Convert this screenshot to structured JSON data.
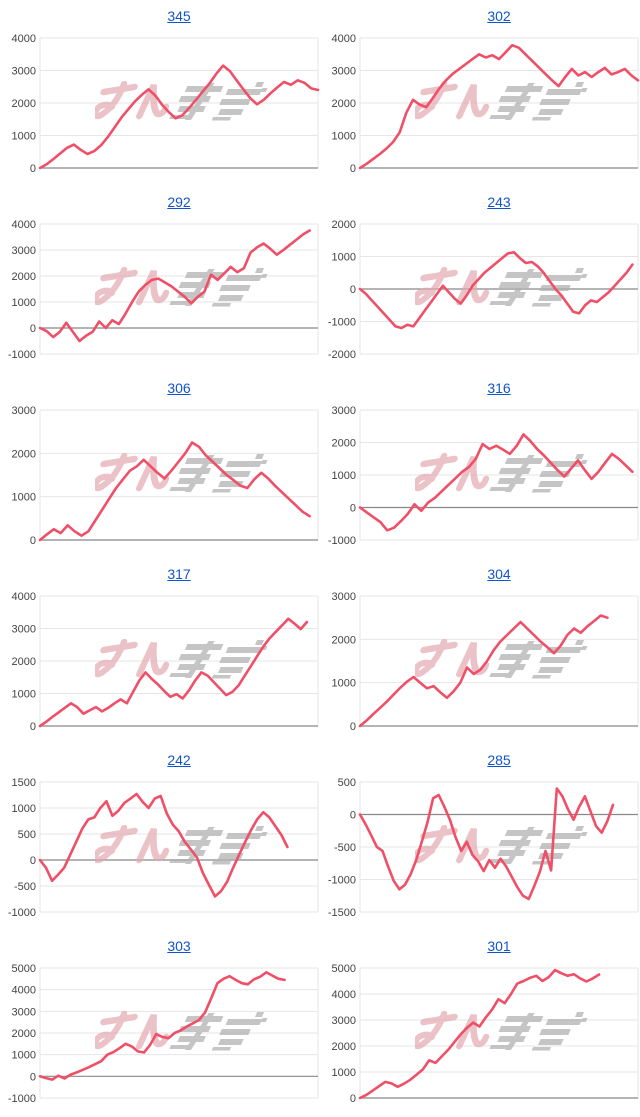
{
  "page": {
    "background": "#ffffff",
    "description": "Grid of twelve cumulative line charts, each titled by a blue numeric link"
  },
  "watermark": {
    "text": "みんかぶ",
    "pink_color": "#e2a6ad",
    "gray_color": "#b0b0b0"
  },
  "style": {
    "line_color": "#ef5068",
    "link_color": "#1155cc",
    "grid_color": "#e6e6e6",
    "baseline_color": "#888888",
    "axis_text_color": "#444444"
  },
  "chart_data": [
    {
      "type": "line",
      "title": "345",
      "xlabel": "",
      "ylabel": "",
      "ylim": [
        0,
        4000
      ],
      "y_step": 1000,
      "grid": true,
      "legend": "none",
      "end_fraction": 1.0,
      "values": [
        0,
        120,
        280,
        450,
        620,
        720,
        560,
        430,
        520,
        700,
        950,
        1250,
        1550,
        1800,
        2050,
        2250,
        2420,
        2230,
        1950,
        1720,
        1530,
        1620,
        1850,
        2100,
        2350,
        2600,
        2900,
        3150,
        2980,
        2700,
        2420,
        2150,
        1960,
        2100,
        2300,
        2480,
        2650,
        2560,
        2700,
        2620,
        2450,
        2400
      ]
    },
    {
      "type": "line",
      "title": "302",
      "xlabel": "",
      "ylabel": "",
      "ylim": [
        0,
        4000
      ],
      "y_step": 1000,
      "grid": true,
      "legend": "none",
      "end_fraction": 1.0,
      "values": [
        0,
        130,
        280,
        430,
        600,
        800,
        1100,
        1700,
        2100,
        1950,
        1870,
        2150,
        2450,
        2700,
        2900,
        3050,
        3200,
        3350,
        3500,
        3400,
        3470,
        3350,
        3560,
        3780,
        3700,
        3500,
        3300,
        3100,
        2900,
        2700,
        2520,
        2800,
        3050,
        2850,
        2950,
        2800,
        2950,
        3080,
        2880,
        2950,
        3050,
        2850,
        2700
      ]
    },
    {
      "type": "line",
      "title": "292",
      "xlabel": "",
      "ylabel": "",
      "ylim": [
        -1000,
        4000
      ],
      "y_step": 1000,
      "grid": true,
      "legend": "none",
      "end_fraction": 0.97,
      "values": [
        0,
        -120,
        -350,
        -150,
        200,
        -150,
        -500,
        -300,
        -150,
        250,
        0,
        300,
        150,
        550,
        1000,
        1400,
        1650,
        1850,
        1900,
        1750,
        1600,
        1400,
        1200,
        950,
        1200,
        1400,
        2050,
        1850,
        2100,
        2350,
        2150,
        2300,
        2900,
        3100,
        3250,
        3050,
        2820,
        3000,
        3200,
        3400,
        3600,
        3750
      ]
    },
    {
      "type": "line",
      "title": "243",
      "xlabel": "",
      "ylabel": "",
      "ylim": [
        -2000,
        2000
      ],
      "y_step": 1000,
      "grid": true,
      "legend": "none",
      "end_fraction": 0.98,
      "values": [
        0,
        -150,
        -350,
        -550,
        -750,
        -950,
        -1150,
        -1200,
        -1100,
        -1150,
        -900,
        -650,
        -400,
        -150,
        100,
        -100,
        -300,
        -450,
        -200,
        100,
        300,
        500,
        650,
        800,
        950,
        1100,
        1130,
        950,
        800,
        830,
        700,
        500,
        250,
        0,
        -200,
        -450,
        -700,
        -750,
        -500,
        -350,
        -400,
        -250,
        -100,
        100,
        300,
        500,
        750
      ]
    },
    {
      "type": "line",
      "title": "306",
      "xlabel": "",
      "ylabel": "",
      "ylim": [
        0,
        3000
      ],
      "y_step": 1000,
      "grid": true,
      "legend": "none",
      "end_fraction": 0.97,
      "values": [
        0,
        130,
        250,
        160,
        340,
        200,
        100,
        200,
        450,
        700,
        950,
        1200,
        1400,
        1600,
        1700,
        1850,
        1700,
        1550,
        1420,
        1600,
        1800,
        2000,
        2250,
        2150,
        1950,
        1800,
        1650,
        1500,
        1380,
        1250,
        1200,
        1400,
        1550,
        1420,
        1250,
        1100,
        950,
        800,
        650,
        550
      ]
    },
    {
      "type": "line",
      "title": "316",
      "xlabel": "",
      "ylabel": "",
      "ylim": [
        -1000,
        3000
      ],
      "y_step": 1000,
      "grid": true,
      "legend": "none",
      "end_fraction": 0.98,
      "values": [
        0,
        -150,
        -300,
        -450,
        -700,
        -620,
        -420,
        -200,
        100,
        -100,
        150,
        300,
        500,
        700,
        900,
        1100,
        1250,
        1500,
        1950,
        1800,
        1900,
        1780,
        1650,
        1900,
        2250,
        2050,
        1800,
        1600,
        1380,
        1150,
        950,
        1200,
        1450,
        1150,
        880,
        1100,
        1380,
        1650,
        1500,
        1300,
        1100
      ]
    },
    {
      "type": "line",
      "title": "317",
      "xlabel": "",
      "ylabel": "",
      "ylim": [
        0,
        4000
      ],
      "y_step": 1000,
      "grid": true,
      "legend": "none",
      "end_fraction": 0.96,
      "values": [
        0,
        130,
        280,
        420,
        560,
        700,
        580,
        380,
        480,
        580,
        450,
        560,
        700,
        820,
        700,
        1050,
        1400,
        1650,
        1450,
        1280,
        1080,
        900,
        980,
        850,
        1100,
        1400,
        1650,
        1550,
        1350,
        1150,
        950,
        1050,
        1250,
        1550,
        1850,
        2150,
        2450,
        2700,
        2900,
        3100,
        3300,
        3150,
        2980,
        3200
      ]
    },
    {
      "type": "line",
      "title": "304",
      "xlabel": "",
      "ylabel": "",
      "ylim": [
        0,
        3000
      ],
      "y_step": 1000,
      "grid": true,
      "legend": "none",
      "end_fraction": 0.89,
      "values": [
        0,
        130,
        280,
        420,
        560,
        720,
        880,
        1020,
        1130,
        1000,
        870,
        920,
        780,
        650,
        800,
        1000,
        1350,
        1200,
        1300,
        1500,
        1750,
        1950,
        2100,
        2250,
        2400,
        2250,
        2100,
        1950,
        1820,
        1680,
        1850,
        2100,
        2250,
        2150,
        2300,
        2420,
        2550,
        2500
      ]
    },
    {
      "type": "line",
      "title": "242",
      "xlabel": "",
      "ylabel": "",
      "ylim": [
        -1000,
        1500
      ],
      "y_step": 500,
      "grid": true,
      "legend": "none",
      "end_fraction": 0.89,
      "values": [
        0,
        -150,
        -400,
        -280,
        -150,
        100,
        350,
        600,
        780,
        820,
        1000,
        1130,
        850,
        950,
        1100,
        1180,
        1270,
        1120,
        1000,
        1180,
        1230,
        900,
        680,
        550,
        350,
        200,
        50,
        -250,
        -480,
        -700,
        -600,
        -420,
        -150,
        100,
        350,
        580,
        780,
        920,
        820,
        650,
        480,
        250
      ]
    },
    {
      "type": "line",
      "title": "285",
      "xlabel": "",
      "ylabel": "",
      "ylim": [
        -1500,
        500
      ],
      "y_step": 500,
      "grid": true,
      "legend": "none",
      "end_fraction": 0.91,
      "values": [
        0,
        -150,
        -320,
        -500,
        -560,
        -800,
        -1020,
        -1150,
        -1080,
        -920,
        -700,
        -420,
        -120,
        250,
        300,
        120,
        -80,
        -350,
        -560,
        -420,
        -620,
        -720,
        -870,
        -700,
        -820,
        -680,
        -800,
        -960,
        -1120,
        -1250,
        -1300,
        -1100,
        -880,
        -560,
        -860,
        400,
        280,
        80,
        -80,
        120,
        280,
        50,
        -180,
        -280,
        -100,
        150
      ]
    },
    {
      "type": "line",
      "title": "303",
      "xlabel": "",
      "ylabel": "",
      "ylim": [
        -1000,
        5000
      ],
      "y_step": 1000,
      "grid": true,
      "legend": "none",
      "end_fraction": 0.88,
      "values": [
        0,
        -80,
        -150,
        30,
        -100,
        80,
        180,
        300,
        420,
        560,
        700,
        1000,
        1120,
        1300,
        1500,
        1380,
        1150,
        1100,
        1450,
        1950,
        1820,
        1760,
        2000,
        2120,
        2300,
        2450,
        2600,
        2950,
        3600,
        4300,
        4500,
        4620,
        4450,
        4300,
        4250,
        4480,
        4600,
        4800,
        4650,
        4500,
        4450
      ]
    },
    {
      "type": "line",
      "title": "301",
      "xlabel": "",
      "ylabel": "",
      "ylim": [
        0,
        5000
      ],
      "y_step": 1000,
      "grid": true,
      "legend": "none",
      "end_fraction": 0.86,
      "values": [
        0,
        120,
        280,
        450,
        620,
        560,
        430,
        550,
        700,
        900,
        1100,
        1450,
        1350,
        1600,
        1850,
        2150,
        2450,
        2700,
        2900,
        2750,
        3100,
        3400,
        3800,
        3650,
        4000,
        4400,
        4500,
        4620,
        4700,
        4500,
        4650,
        4920,
        4800,
        4700,
        4760,
        4600,
        4480,
        4600,
        4750
      ]
    }
  ]
}
